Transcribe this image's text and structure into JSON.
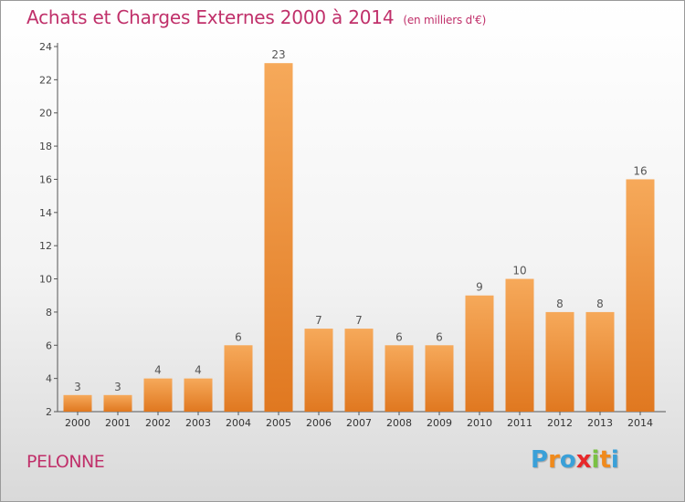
{
  "header": {
    "title": "Achats et Charges Externes 2000 à 2014",
    "unit": "(en milliers d'€)"
  },
  "footer": {
    "commune": "PELONNE",
    "logo_text": "Proxiti"
  },
  "colors": {
    "title": "#c0306a",
    "bar_light": "#f6a95a",
    "bar_dark": "#e07820",
    "axis": "#555555"
  },
  "logo_colors": [
    "#3aa0d8",
    "#f08a1c",
    "#3aa0d8",
    "#e8282a",
    "#7ac143",
    "#f08a1c",
    "#3aa0d8"
  ],
  "chart_data": {
    "type": "bar",
    "title": "Achats et Charges Externes 2000 à 2014",
    "subtitle": "(en milliers d'€)",
    "xlabel": "",
    "ylabel": "",
    "categories": [
      "2000",
      "2001",
      "2002",
      "2003",
      "2004",
      "2005",
      "2006",
      "2007",
      "2008",
      "2009",
      "2010",
      "2011",
      "2012",
      "2013",
      "2014"
    ],
    "values": [
      3,
      3,
      4,
      4,
      6,
      23,
      7,
      7,
      6,
      6,
      9,
      10,
      8,
      8,
      16
    ],
    "ylim": [
      2,
      24
    ],
    "yticks": [
      2,
      4,
      6,
      8,
      10,
      12,
      14,
      16,
      18,
      20,
      22,
      24
    ],
    "grid": false,
    "legend": "none"
  }
}
